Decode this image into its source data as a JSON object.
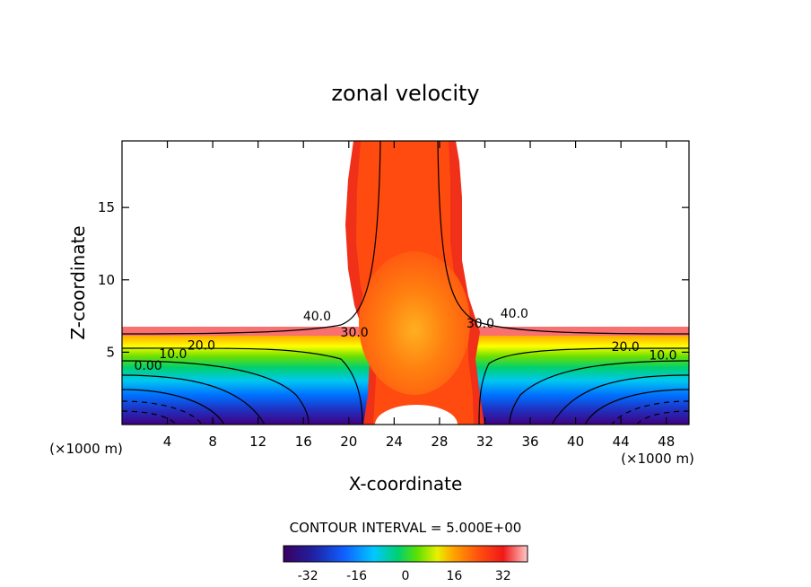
{
  "chart_data": {
    "type": "contour",
    "title": "zonal velocity",
    "xlabel": "X-coordinate",
    "ylabel": "Z-coordinate",
    "x_units_left": "(×1000 m)",
    "x_units_right": "(×1000 m)",
    "xlim": [
      0,
      50
    ],
    "ylim": [
      0,
      19.6
    ],
    "x_ticks": [
      4,
      8,
      12,
      16,
      20,
      24,
      28,
      32,
      36,
      40,
      44,
      48
    ],
    "y_ticks": [
      5,
      10,
      15
    ],
    "contour_labels": [
      {
        "text": "40.0",
        "x": 17.2,
        "z": 7.5
      },
      {
        "text": "30.0",
        "x": 20.5,
        "z": 6.4
      },
      {
        "text": "20.0",
        "x": 7.0,
        "z": 5.5
      },
      {
        "text": "10.0",
        "x": 4.5,
        "z": 4.9
      },
      {
        "text": "0.00",
        "x": 2.3,
        "z": 4.1
      },
      {
        "text": "30.0",
        "x": 31.6,
        "z": 7.0
      },
      {
        "text": "40.0",
        "x": 34.6,
        "z": 7.7
      },
      {
        "text": "20.0",
        "x": 44.4,
        "z": 5.4
      },
      {
        "text": "10.0",
        "x": 47.7,
        "z": 4.8
      }
    ],
    "contour_interval_label": "CONTOUR INTERVAL = 5.000E+00",
    "colorbar": {
      "min": -40,
      "max": 40,
      "ticks": [
        -32,
        -16,
        0,
        16,
        32
      ]
    }
  }
}
